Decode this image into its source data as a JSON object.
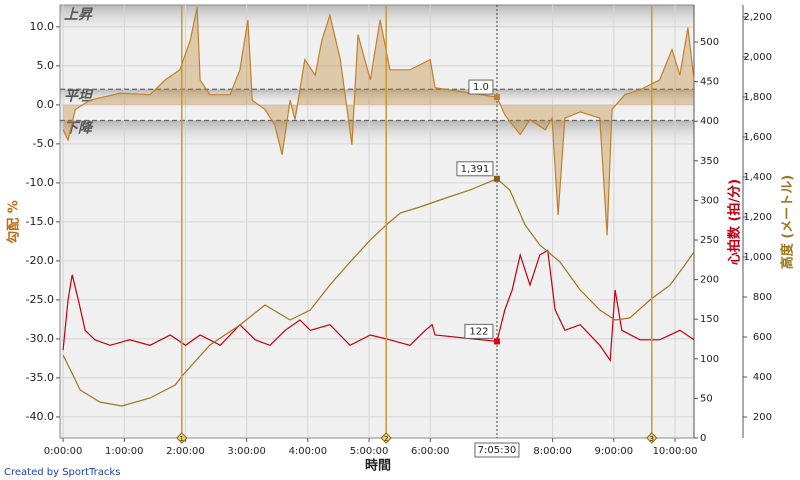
{
  "chart_data": {
    "type": "line",
    "xlabel": "時間",
    "ylabel": "勾配 %",
    "y2label": "心拍数 (拍/分)",
    "y3label": "高度 (メートル)",
    "footer": "Created by SportTracks",
    "xlim": [
      -0.05,
      10.31
    ],
    "xticks": [
      {
        "value": 0,
        "label": "0:00:00"
      },
      {
        "value": 1,
        "label": "1:00:00"
      },
      {
        "value": 2,
        "label": "2:00:00"
      },
      {
        "value": 3,
        "label": "3:00:00"
      },
      {
        "value": 4,
        "label": "4:00:00"
      },
      {
        "value": 5,
        "label": "5:00:00"
      },
      {
        "value": 6,
        "label": "6:00:00"
      },
      {
        "value": 8,
        "label": "8:00:00"
      },
      {
        "value": 9,
        "label": "9:00:00"
      },
      {
        "value": 10,
        "label": "10:00:00"
      }
    ],
    "ylim": [
      -42.7,
      12.8
    ],
    "yticks": [
      {
        "value": -40,
        "label": "-40.0"
      },
      {
        "value": -35,
        "label": "-35.0"
      },
      {
        "value": -30,
        "label": "-30.0"
      },
      {
        "value": -25,
        "label": "-25.0"
      },
      {
        "value": -20,
        "label": "-20.0"
      },
      {
        "value": -15,
        "label": "-15.0"
      },
      {
        "value": -10,
        "label": "-10.0"
      },
      {
        "value": -5,
        "label": "-5.0"
      },
      {
        "value": 0,
        "label": "0.0"
      },
      {
        "value": 5,
        "label": "5.0"
      },
      {
        "value": 10,
        "label": "10.0"
      }
    ],
    "y2lim": [
      0,
      546.7
    ],
    "y2ticks": [
      0,
      50,
      100,
      150,
      200,
      250,
      300,
      350,
      400,
      450,
      500
    ],
    "y3lim": [
      95,
      2260
    ],
    "y3ticks": [
      200,
      400,
      600,
      800,
      {
        "value": 1000,
        "label": "1,000"
      },
      {
        "value": 1200,
        "label": "1,200"
      },
      {
        "value": 1400,
        "label": "1,400"
      },
      {
        "value": 1600,
        "label": "1,600"
      },
      {
        "value": 1800,
        "label": "1,800"
      },
      {
        "value": 2000,
        "label": "2,000"
      },
      {
        "value": 2200,
        "label": "2,200"
      }
    ],
    "grid": true,
    "zones": {
      "labels": [
        "上昇",
        "平坦",
        "下降"
      ],
      "flat_range": [
        -2,
        2
      ]
    },
    "laps": [
      {
        "x": 1.94,
        "label": "1"
      },
      {
        "x": 5.28,
        "label": "2"
      },
      {
        "x": 9.62,
        "label": "3"
      }
    ],
    "series": [
      {
        "name": "勾配",
        "axis": "y",
        "color": "#c0802a",
        "x": [
          0,
          0.08,
          0.2,
          0.44,
          0.93,
          1.42,
          1.67,
          1.91,
          2.08,
          2.19,
          2.24,
          2.4,
          2.73,
          2.89,
          3.02,
          3.09,
          3.3,
          3.46,
          3.58,
          3.71,
          3.79,
          3.95,
          4.12,
          4.23,
          4.36,
          4.53,
          4.72,
          4.82,
          5.02,
          5.18,
          5.34,
          5.67,
          6.0,
          6.08,
          7.09,
          7.22,
          7.47,
          7.63,
          7.88,
          7.99,
          8.09,
          8.2,
          8.45,
          8.77,
          8.89,
          8.97,
          9.18,
          9.42,
          9.75,
          9.95,
          10.08,
          10.21,
          10.31
        ],
        "values": [
          -3.2,
          -4.5,
          -0.6,
          0.6,
          1.5,
          1.3,
          3.2,
          4.5,
          8.3,
          12.5,
          3.2,
          1.3,
          1.3,
          4.5,
          10.9,
          0.6,
          -0.6,
          -2.6,
          -6.4,
          0.6,
          -1.9,
          5.8,
          3.8,
          8.3,
          11.5,
          5.8,
          -5.1,
          9.0,
          3.2,
          10.9,
          4.5,
          4.5,
          5.8,
          2.2,
          1.0,
          -1.3,
          -3.8,
          -1.9,
          -3.2,
          -1.7,
          -14.1,
          -1.7,
          -0.9,
          -1.7,
          -16.7,
          -0.6,
          1.3,
          1.9,
          3.2,
          7.1,
          3.8,
          9.9,
          3.2
        ]
      },
      {
        "name": "心拍数",
        "axis": "y2",
        "color": "#c00010",
        "x": [
          0,
          0.08,
          0.15,
          0.25,
          0.36,
          0.52,
          0.77,
          1.09,
          1.42,
          1.75,
          2.0,
          2.24,
          2.57,
          2.89,
          3.14,
          3.38,
          3.63,
          3.87,
          4.04,
          4.36,
          4.69,
          5.02,
          5.34,
          5.67,
          5.92,
          6.03,
          6.08,
          7.09,
          7.22,
          7.34,
          7.47,
          7.63,
          7.79,
          7.92,
          8.04,
          8.2,
          8.45,
          8.77,
          8.94,
          9.02,
          9.13,
          9.43,
          9.75,
          10.08,
          10.31
        ],
        "values": [
          111,
          174,
          206,
          174,
          136,
          124,
          117,
          124,
          117,
          130,
          117,
          130,
          117,
          143,
          124,
          117,
          136,
          149,
          136,
          143,
          117,
          130,
          124,
          117,
          136,
          143,
          130,
          122,
          162,
          187,
          231,
          193,
          231,
          237,
          162,
          136,
          143,
          117,
          98,
          187,
          136,
          124,
          124,
          136,
          124
        ]
      },
      {
        "name": "高度",
        "axis": "y3",
        "color": "#a0741e",
        "x": [
          0,
          0.28,
          0.6,
          0.96,
          1.42,
          1.83,
          1.96,
          2.4,
          2.89,
          3.3,
          3.71,
          4.04,
          4.36,
          4.69,
          5.02,
          5.28,
          5.51,
          5.83,
          6.16,
          6.65,
          7.09,
          7.3,
          7.55,
          7.79,
          8.12,
          8.45,
          8.77,
          9.02,
          9.26,
          9.59,
          9.92,
          10.16,
          10.31
        ],
        "values": [
          510,
          335,
          275,
          255,
          295,
          360,
          410,
          560,
          660,
          760,
          685,
          735,
          860,
          975,
          1085,
          1160,
          1220,
          1250,
          1285,
          1335,
          1391,
          1335,
          1160,
          1060,
          975,
          835,
          735,
          685,
          695,
          785,
          860,
          960,
          1025
        ]
      }
    ],
    "cursor": {
      "x": {
        "value": 7.09,
        "label": "7:05:30"
      },
      "grade": {
        "value": 1.0,
        "label": "1.0"
      },
      "altitude": {
        "value": 1391,
        "label": "1,391"
      },
      "heart_rate": 122
    }
  }
}
